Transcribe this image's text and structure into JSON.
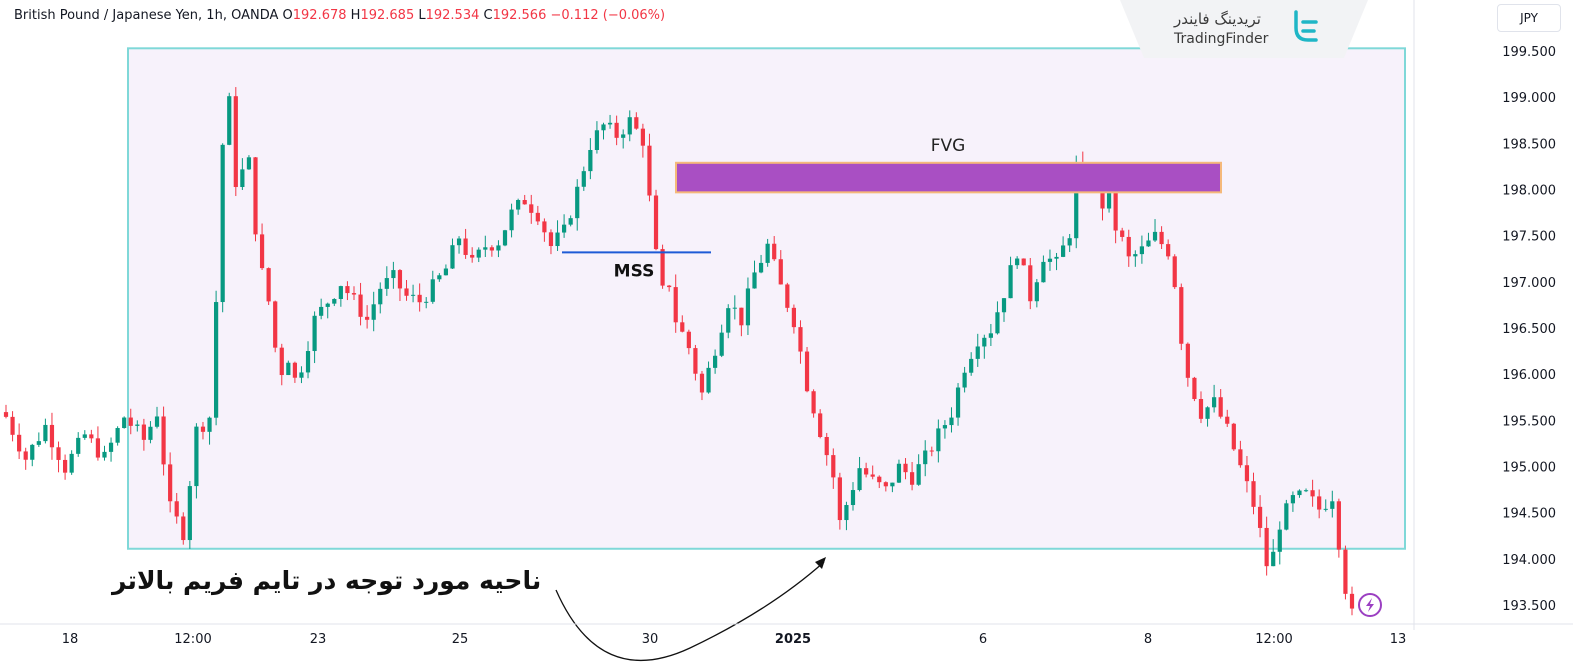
{
  "header": {
    "symbol": "British Pound / Japanese Yen, 1h, OANDA",
    "open_label": "O",
    "open": "192.678",
    "high_label": "H",
    "high": "192.685",
    "low_label": "L",
    "low": "192.534",
    "close_label": "C",
    "close": "192.566",
    "change": "−0.112 (−0.06%)"
  },
  "currency_badge": "JPY",
  "logo": {
    "name_fa": "تریدینگ فایندر",
    "name_en": "TradingFinder"
  },
  "annotations": {
    "fvg_label": "FVG",
    "mss_label": "MSS",
    "zone_note_fa": "ناحیه مورد توجه در تایم فریم بالاتر"
  },
  "colors": {
    "bullish": "#089981",
    "bearish": "#f23645",
    "fvg_fill": "#a94fc3",
    "fvg_border": "#f5b97a",
    "zone_border": "#7fd8d8",
    "zone_fill": "#f7f2fb",
    "mss_line": "#1e5bd6"
  },
  "chart_data": {
    "type": "candlestick",
    "instrument": "British Pound / Japanese Yen",
    "timeframe": "1h",
    "ylim": [
      193.3,
      199.75
    ],
    "y_ticks": [
      "199.500",
      "199.000",
      "198.500",
      "198.000",
      "197.500",
      "197.000",
      "196.500",
      "196.000",
      "195.500",
      "195.000",
      "194.500",
      "194.000",
      "193.500"
    ],
    "x_ticks": [
      "18",
      "12:00",
      "23",
      "25",
      "30",
      "2025",
      "6",
      "8",
      "12:00",
      "13"
    ],
    "fvg_zone": {
      "low": 197.98,
      "high": 198.3
    },
    "mss_level": 197.33,
    "higher_tf_zone": {
      "low": 194.12,
      "high": 199.54
    },
    "price_path": [
      [
        0,
        195.55
      ],
      [
        3,
        195.1
      ],
      [
        6,
        195.45
      ],
      [
        9,
        195.0
      ],
      [
        12,
        195.35
      ],
      [
        15,
        195.1
      ],
      [
        18,
        195.55
      ],
      [
        21,
        195.3
      ],
      [
        23,
        195.6
      ],
      [
        25,
        194.55
      ],
      [
        27,
        194.3
      ],
      [
        29,
        195.4
      ],
      [
        31,
        195.55
      ],
      [
        32,
        196.8
      ],
      [
        33,
        198.5
      ],
      [
        34,
        198.95
      ],
      [
        35,
        198.1
      ],
      [
        37,
        198.3
      ],
      [
        38,
        197.6
      ],
      [
        39,
        197.1
      ],
      [
        40,
        196.8
      ],
      [
        41,
        196.3
      ],
      [
        42,
        196.05
      ],
      [
        43,
        196.2
      ],
      [
        44,
        195.95
      ],
      [
        45,
        196.1
      ],
      [
        47,
        196.6
      ],
      [
        49,
        196.8
      ],
      [
        51,
        197.0
      ],
      [
        53,
        196.8
      ],
      [
        55,
        196.6
      ],
      [
        57,
        196.95
      ],
      [
        59,
        197.05
      ],
      [
        61,
        196.85
      ],
      [
        63,
        196.8
      ],
      [
        65,
        196.95
      ],
      [
        67,
        197.15
      ],
      [
        69,
        197.5
      ],
      [
        71,
        197.2
      ],
      [
        73,
        197.4
      ],
      [
        75,
        197.45
      ],
      [
        77,
        197.75
      ],
      [
        79,
        197.9
      ],
      [
        81,
        197.75
      ],
      [
        83,
        197.4
      ],
      [
        85,
        197.55
      ],
      [
        87,
        198.0
      ],
      [
        89,
        198.5
      ],
      [
        91,
        198.7
      ],
      [
        93,
        198.6
      ],
      [
        95,
        198.75
      ],
      [
        97,
        198.55
      ],
      [
        98,
        197.9
      ],
      [
        99,
        197.3
      ],
      [
        100,
        196.9
      ],
      [
        101,
        197.0
      ],
      [
        102,
        196.6
      ],
      [
        104,
        196.3
      ],
      [
        106,
        195.8
      ],
      [
        108,
        196.3
      ],
      [
        110,
        196.8
      ],
      [
        112,
        196.6
      ],
      [
        114,
        197.1
      ],
      [
        116,
        197.4
      ],
      [
        118,
        196.95
      ],
      [
        120,
        196.6
      ],
      [
        122,
        195.9
      ],
      [
        124,
        195.4
      ],
      [
        126,
        194.9
      ],
      [
        127,
        194.4
      ],
      [
        128,
        194.6
      ],
      [
        130,
        195.0
      ],
      [
        132,
        194.85
      ],
      [
        134,
        194.75
      ],
      [
        136,
        195.0
      ],
      [
        138,
        194.9
      ],
      [
        140,
        195.1
      ],
      [
        142,
        195.35
      ],
      [
        144,
        195.6
      ],
      [
        146,
        196.1
      ],
      [
        148,
        196.4
      ],
      [
        150,
        196.5
      ],
      [
        152,
        196.9
      ],
      [
        154,
        197.35
      ],
      [
        156,
        196.85
      ],
      [
        158,
        197.3
      ],
      [
        160,
        197.2
      ],
      [
        162,
        197.55
      ],
      [
        163,
        198.25
      ],
      [
        164,
        198.1
      ],
      [
        165,
        198.2
      ],
      [
        166,
        198.05
      ],
      [
        167,
        197.85
      ],
      [
        168,
        198.05
      ],
      [
        169,
        197.6
      ],
      [
        170,
        197.45
      ],
      [
        171,
        197.25
      ],
      [
        173,
        197.35
      ],
      [
        175,
        197.5
      ],
      [
        177,
        197.35
      ],
      [
        178,
        197.0
      ],
      [
        179,
        196.4
      ],
      [
        180,
        196.0
      ],
      [
        182,
        195.6
      ],
      [
        184,
        195.7
      ],
      [
        186,
        195.4
      ],
      [
        188,
        195.0
      ],
      [
        190,
        194.6
      ],
      [
        191,
        194.3
      ],
      [
        192,
        193.95
      ],
      [
        193,
        194.05
      ],
      [
        194,
        194.4
      ],
      [
        196,
        194.65
      ],
      [
        198,
        194.7
      ],
      [
        200,
        194.55
      ],
      [
        202,
        194.7
      ],
      [
        203,
        194.2
      ],
      [
        204,
        193.7
      ],
      [
        205,
        193.4
      ]
    ]
  }
}
